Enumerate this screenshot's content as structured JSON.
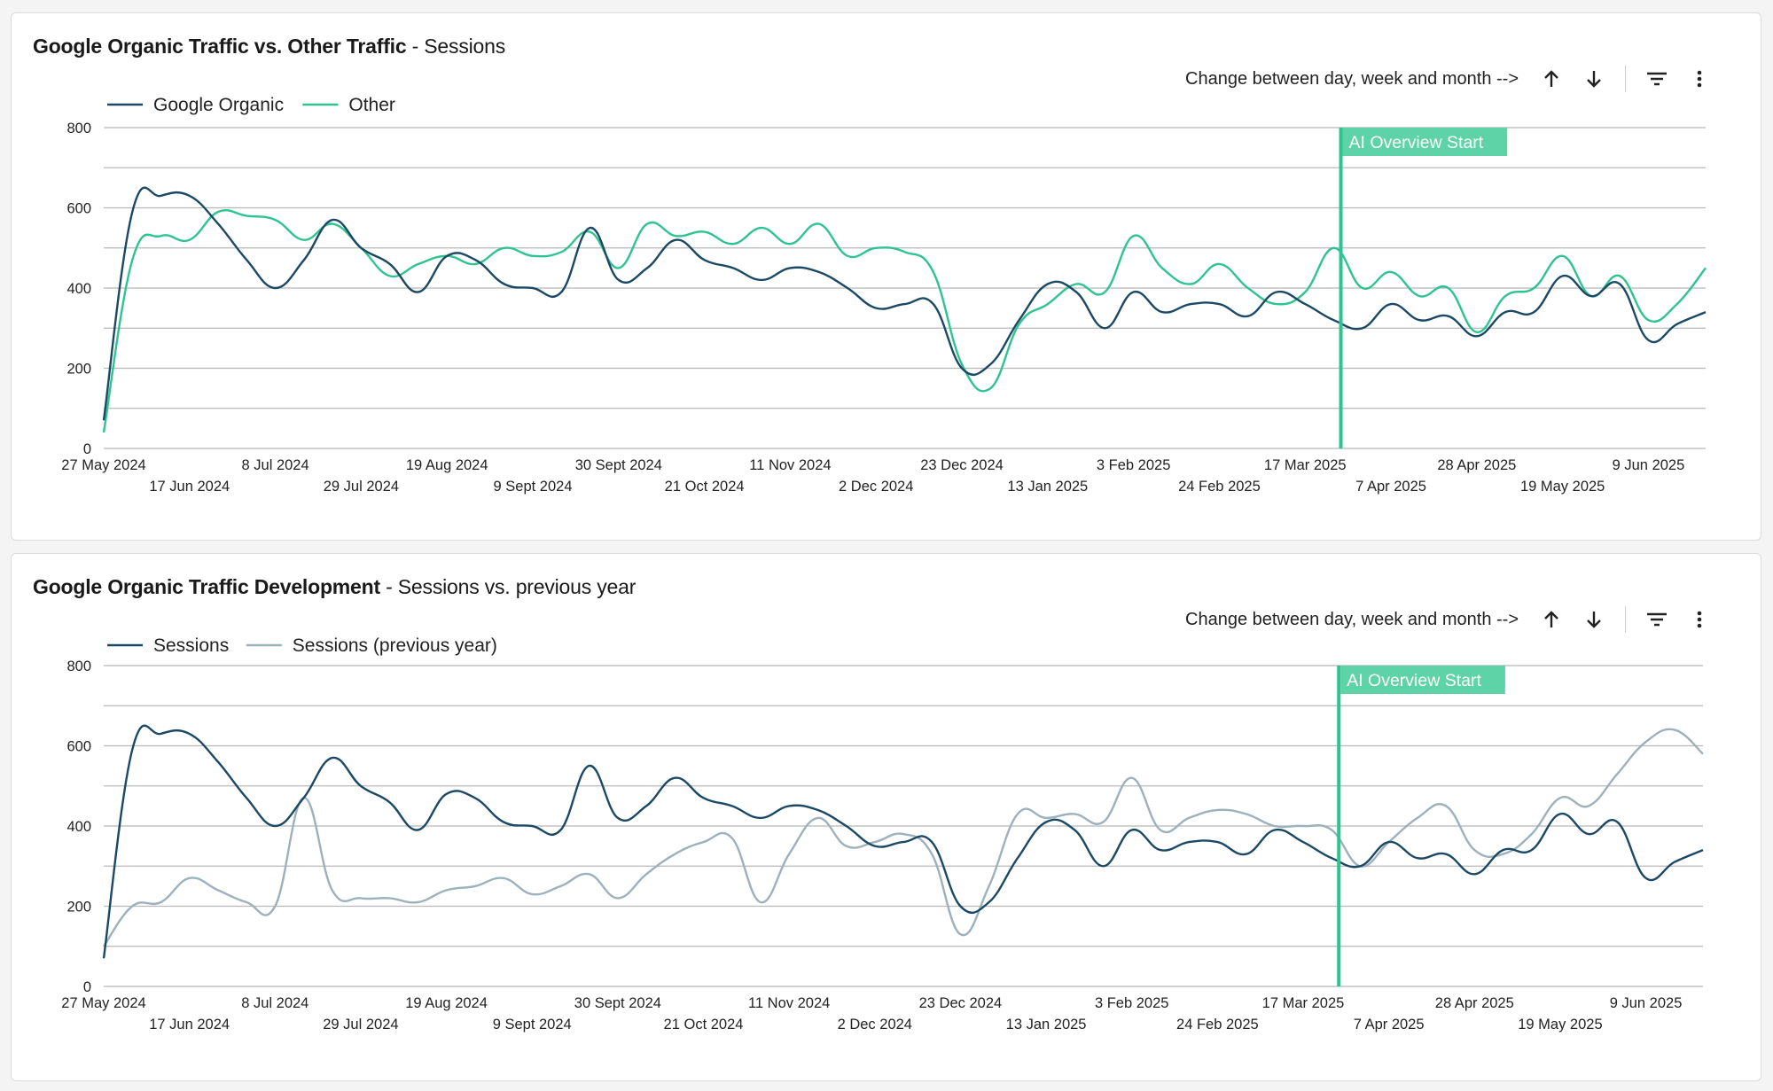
{
  "cards": [
    {
      "title_bold": "Google Organic Traffic vs. Other Traffic",
      "title_rest": " - Sessions",
      "toolbar_hint": "Change between day, week and month -->"
    },
    {
      "title_bold": "Google Organic Traffic Development",
      "title_rest": " - Sessions vs. previous year",
      "toolbar_hint": "Change between day, week and month -->"
    }
  ],
  "icons": [
    "arrow-up-icon",
    "arrow-down-icon",
    "filter-icon",
    "more-vert-icon"
  ],
  "chart_data": [
    {
      "type": "line",
      "title": "Google Organic Traffic vs. Other Traffic - Sessions",
      "ylim": [
        0,
        800
      ],
      "y_ticks": [
        0,
        200,
        400,
        600,
        800
      ],
      "grid": true,
      "legend_position": "top-left",
      "x_labels_row1": [
        "27 May 2024",
        "8 Jul 2024",
        "19 Aug 2024",
        "30 Sept 2024",
        "11 Nov 2024",
        "23 Dec 2024",
        "3 Feb 2025",
        "17 Mar 2025",
        "28 Apr 2025",
        "9 Jun 2025"
      ],
      "x_labels_row2": [
        "17 Jun 2024",
        "29 Jul 2024",
        "9 Sept 2024",
        "21 Oct 2024",
        "2 Dec 2024",
        "13 Jan 2025",
        "24 Feb 2025",
        "7 Apr 2025",
        "19 May 2025"
      ],
      "x_weeks": [
        "2024-05-27",
        "2024-06-03",
        "2024-06-10",
        "2024-06-17",
        "2024-06-24",
        "2024-07-01",
        "2024-07-08",
        "2024-07-15",
        "2024-07-22",
        "2024-07-29",
        "2024-08-05",
        "2024-08-12",
        "2024-08-19",
        "2024-08-26",
        "2024-09-02",
        "2024-09-09",
        "2024-09-16",
        "2024-09-23",
        "2024-09-30",
        "2024-10-07",
        "2024-10-14",
        "2024-10-21",
        "2024-10-28",
        "2024-11-04",
        "2024-11-11",
        "2024-11-18",
        "2024-11-25",
        "2024-12-02",
        "2024-12-09",
        "2024-12-16",
        "2024-12-23",
        "2024-12-30",
        "2025-01-06",
        "2025-01-13",
        "2025-01-20",
        "2025-01-27",
        "2025-02-03",
        "2025-02-10",
        "2025-02-17",
        "2025-02-24",
        "2025-03-03",
        "2025-03-10",
        "2025-03-17",
        "2025-03-24",
        "2025-03-31",
        "2025-04-07",
        "2025-04-14",
        "2025-04-21",
        "2025-04-28",
        "2025-05-05",
        "2025-05-12",
        "2025-05-19",
        "2025-05-26",
        "2025-06-02",
        "2025-06-09",
        "2025-06-16",
        "2025-06-23"
      ],
      "series": [
        {
          "name": "Google Organic",
          "color": "#1b4965",
          "values": [
            70,
            590,
            630,
            630,
            560,
            470,
            400,
            470,
            570,
            500,
            460,
            390,
            480,
            470,
            410,
            400,
            390,
            550,
            420,
            450,
            520,
            470,
            450,
            420,
            450,
            440,
            400,
            350,
            360,
            360,
            200,
            210,
            320,
            410,
            390,
            300,
            390,
            340,
            360,
            360,
            330,
            390,
            360,
            320,
            300,
            360,
            320,
            330,
            280,
            340,
            340,
            430,
            380,
            410,
            270,
            310,
            340
          ]
        },
        {
          "name": "Other",
          "color": "#2ec48f",
          "values": [
            40,
            470,
            530,
            520,
            590,
            580,
            570,
            520,
            560,
            500,
            430,
            460,
            480,
            460,
            500,
            480,
            490,
            540,
            450,
            560,
            530,
            540,
            510,
            550,
            510,
            560,
            480,
            500,
            490,
            440,
            210,
            150,
            310,
            360,
            410,
            390,
            530,
            450,
            410,
            460,
            400,
            360,
            390,
            500,
            400,
            440,
            380,
            400,
            290,
            380,
            400,
            480,
            380,
            430,
            320,
            360,
            450
          ]
        }
      ],
      "annotation": {
        "label": "AI Overview Start",
        "x": "2025-03-24"
      }
    },
    {
      "type": "line",
      "title": "Google Organic Traffic Development - Sessions vs. previous year",
      "ylim": [
        0,
        800
      ],
      "y_ticks": [
        0,
        200,
        400,
        600,
        800
      ],
      "grid": true,
      "legend_position": "top-left",
      "x_labels_row1": [
        "27 May 2024",
        "8 Jul 2024",
        "19 Aug 2024",
        "30 Sept 2024",
        "11 Nov 2024",
        "23 Dec 2024",
        "3 Feb 2025",
        "17 Mar 2025",
        "28 Apr 2025",
        "9 Jun 2025"
      ],
      "x_labels_row2": [
        "17 Jun 2024",
        "29 Jul 2024",
        "9 Sept 2024",
        "21 Oct 2024",
        "2 Dec 2024",
        "13 Jan 2025",
        "24 Feb 2025",
        "7 Apr 2025",
        "19 May 2025"
      ],
      "x_weeks": [
        "2024-05-27",
        "2024-06-03",
        "2024-06-10",
        "2024-06-17",
        "2024-06-24",
        "2024-07-01",
        "2024-07-08",
        "2024-07-15",
        "2024-07-22",
        "2024-07-29",
        "2024-08-05",
        "2024-08-12",
        "2024-08-19",
        "2024-08-26",
        "2024-09-02",
        "2024-09-09",
        "2024-09-16",
        "2024-09-23",
        "2024-09-30",
        "2024-10-07",
        "2024-10-14",
        "2024-10-21",
        "2024-10-28",
        "2024-11-04",
        "2024-11-11",
        "2024-11-18",
        "2024-11-25",
        "2024-12-02",
        "2024-12-09",
        "2024-12-16",
        "2024-12-23",
        "2024-12-30",
        "2025-01-06",
        "2025-01-13",
        "2025-01-20",
        "2025-01-27",
        "2025-02-03",
        "2025-02-10",
        "2025-02-17",
        "2025-02-24",
        "2025-03-03",
        "2025-03-10",
        "2025-03-17",
        "2025-03-24",
        "2025-03-31",
        "2025-04-07",
        "2025-04-14",
        "2025-04-21",
        "2025-04-28",
        "2025-05-05",
        "2025-05-12",
        "2025-05-19",
        "2025-05-26",
        "2025-06-02",
        "2025-06-09",
        "2025-06-16",
        "2025-06-23"
      ],
      "series": [
        {
          "name": "Sessions",
          "color": "#1b4965",
          "values": [
            70,
            590,
            630,
            630,
            560,
            470,
            400,
            470,
            570,
            500,
            460,
            390,
            480,
            470,
            410,
            400,
            390,
            550,
            420,
            450,
            520,
            470,
            450,
            420,
            450,
            440,
            400,
            350,
            360,
            360,
            200,
            210,
            320,
            410,
            390,
            300,
            390,
            340,
            360,
            360,
            330,
            390,
            360,
            320,
            300,
            360,
            320,
            330,
            280,
            340,
            340,
            430,
            380,
            410,
            270,
            310,
            340
          ]
        },
        {
          "name": "Sessions (previous year)",
          "color": "#9db1bd",
          "values": [
            100,
            200,
            210,
            270,
            240,
            210,
            200,
            470,
            240,
            220,
            220,
            210,
            240,
            250,
            270,
            230,
            250,
            280,
            220,
            280,
            330,
            360,
            370,
            210,
            330,
            420,
            350,
            360,
            380,
            330,
            130,
            250,
            430,
            420,
            430,
            410,
            520,
            390,
            420,
            440,
            430,
            400,
            400,
            390,
            300,
            360,
            420,
            450,
            340,
            330,
            380,
            470,
            450,
            530,
            610,
            640,
            580
          ]
        }
      ],
      "annotation": {
        "label": "AI Overview Start",
        "x": "2025-03-24"
      }
    }
  ]
}
